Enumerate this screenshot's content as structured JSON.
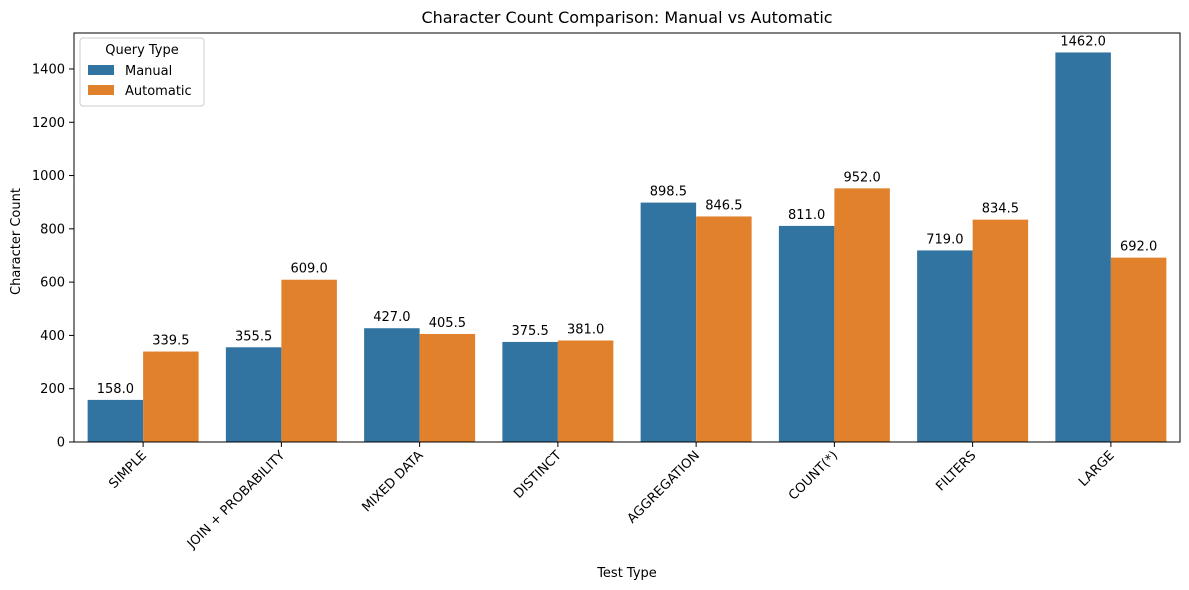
{
  "chart_data": {
    "type": "bar",
    "title": "Character Count Comparison: Manual vs Automatic",
    "xlabel": "Test Type",
    "ylabel": "Character Count",
    "categories": [
      "SIMPLE",
      "JOIN + PROBABILITY",
      "MIXED DATA",
      "DISTINCT",
      "AGGREGATION",
      "COUNT(*)",
      "FILTERS",
      "LARGE"
    ],
    "series": [
      {
        "name": "Manual",
        "color": "#3274a1",
        "values": [
          158.0,
          355.5,
          427.0,
          375.5,
          898.5,
          811.0,
          719.0,
          1462.0
        ],
        "labels": [
          "158.0",
          "355.5",
          "427.0",
          "375.5",
          "898.5",
          "811.0",
          "719.0",
          "1462.0"
        ]
      },
      {
        "name": "Automatic",
        "color": "#e1812c",
        "values": [
          339.5,
          609.0,
          405.5,
          381.0,
          846.5,
          952.0,
          834.5,
          692.0
        ],
        "labels": [
          "339.5",
          "609.0",
          "405.5",
          "381.0",
          "846.5",
          "952.0",
          "834.5",
          "692.0"
        ]
      }
    ],
    "ylim": [
      0,
      1535
    ],
    "yticks": [
      0,
      200,
      400,
      600,
      800,
      1000,
      1200,
      1400
    ],
    "legend": {
      "title": "Query Type",
      "placement": "top-left"
    },
    "grid": false
  }
}
